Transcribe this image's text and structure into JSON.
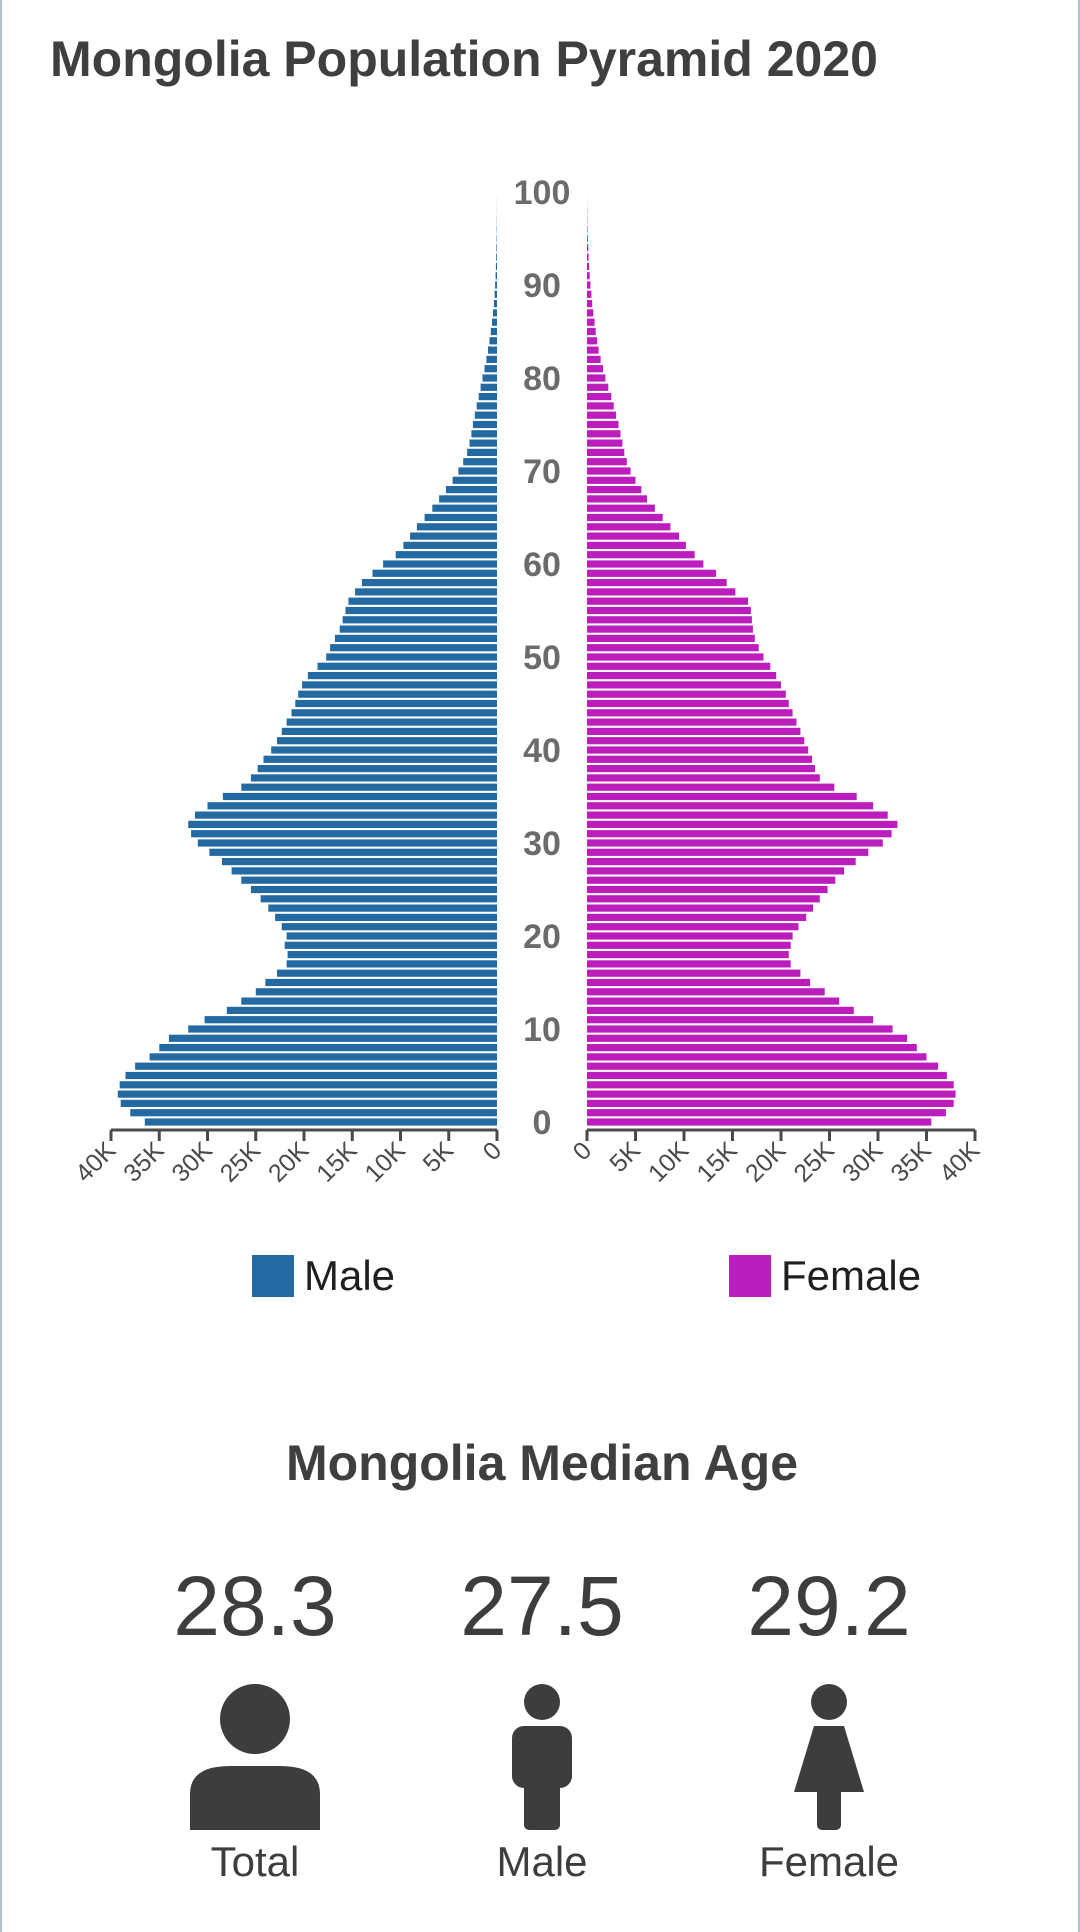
{
  "page_title": "Mongolia Population Pyramid 2020",
  "legend": {
    "male": "Male",
    "female": "Female"
  },
  "colors": {
    "male": "#246aa2",
    "female": "#bc1ebe",
    "axis": "#4a4a4a",
    "text": "#3d3d3d"
  },
  "median_age": {
    "title": "Mongolia Median Age",
    "total": {
      "value": "28.3",
      "label": "Total"
    },
    "male": {
      "value": "27.5",
      "label": "Male"
    },
    "female": {
      "value": "29.2",
      "label": "Female"
    }
  },
  "chart_data": {
    "type": "bar",
    "title": "Mongolia Population Pyramid 2020",
    "orientation": "horizontal",
    "y_ticks": [
      0,
      10,
      20,
      30,
      40,
      50,
      60,
      70,
      80,
      90,
      100
    ],
    "male_x_ticks": [
      "40K",
      "35K",
      "30K",
      "25K",
      "20K",
      "15K",
      "10K",
      "5K",
      "0"
    ],
    "female_x_ticks": [
      "0",
      "5K",
      "10K",
      "15K",
      "20K",
      "25K",
      "30K",
      "35K",
      "40K"
    ],
    "xlim": [
      0,
      40000
    ],
    "ages": [
      0,
      1,
      2,
      3,
      4,
      5,
      6,
      7,
      8,
      9,
      10,
      11,
      12,
      13,
      14,
      15,
      16,
      17,
      18,
      19,
      20,
      21,
      22,
      23,
      24,
      25,
      26,
      27,
      28,
      29,
      30,
      31,
      32,
      33,
      34,
      35,
      36,
      37,
      38,
      39,
      40,
      41,
      42,
      43,
      44,
      45,
      46,
      47,
      48,
      49,
      50,
      51,
      52,
      53,
      54,
      55,
      56,
      57,
      58,
      59,
      60,
      61,
      62,
      63,
      64,
      65,
      66,
      67,
      68,
      69,
      70,
      71,
      72,
      73,
      74,
      75,
      76,
      77,
      78,
      79,
      80,
      81,
      82,
      83,
      84,
      85,
      86,
      87,
      88,
      89,
      90,
      91,
      92,
      93,
      94,
      95,
      96,
      97,
      98,
      99,
      100
    ],
    "series": [
      {
        "name": "Male",
        "values": [
          36500,
          38000,
          39000,
          39300,
          39100,
          38500,
          37500,
          36000,
          35000,
          34000,
          32000,
          30300,
          28000,
          26500,
          25000,
          24000,
          22800,
          21800,
          21700,
          22000,
          21800,
          22300,
          23000,
          23700,
          24500,
          25500,
          26500,
          27500,
          28500,
          29800,
          31000,
          31700,
          32000,
          31300,
          30000,
          28400,
          26500,
          25500,
          24800,
          24200,
          23400,
          22800,
          22300,
          21800,
          21300,
          20900,
          20600,
          20200,
          19600,
          18600,
          17700,
          17300,
          16800,
          16300,
          16000,
          15700,
          15400,
          14700,
          14000,
          12900,
          11800,
          10500,
          9700,
          9000,
          8300,
          7500,
          6700,
          6000,
          5300,
          4600,
          4000,
          3500,
          3100,
          2850,
          2650,
          2500,
          2300,
          2100,
          1900,
          1700,
          1500,
          1300,
          1100,
          930,
          780,
          640,
          520,
          410,
          320,
          250,
          200,
          150,
          110,
          80,
          60,
          40,
          30,
          20,
          15,
          10,
          5
        ]
      },
      {
        "name": "Female",
        "values": [
          35500,
          37000,
          37800,
          38000,
          37800,
          37100,
          36200,
          35000,
          34000,
          33000,
          31500,
          29500,
          27500,
          26000,
          24500,
          23000,
          22000,
          21000,
          20800,
          21000,
          21200,
          21800,
          22600,
          23300,
          24000,
          24800,
          25600,
          26500,
          27700,
          29000,
          30500,
          31400,
          32000,
          31000,
          29500,
          27800,
          25500,
          24000,
          23500,
          23200,
          22800,
          22400,
          22000,
          21600,
          21200,
          20800,
          20500,
          20000,
          19500,
          18900,
          18200,
          17700,
          17300,
          17100,
          17000,
          16900,
          16600,
          15300,
          14400,
          13300,
          12000,
          11100,
          10200,
          9500,
          8600,
          7800,
          7000,
          6200,
          5600,
          5000,
          4500,
          4100,
          3850,
          3650,
          3450,
          3250,
          3000,
          2750,
          2500,
          2200,
          1900,
          1650,
          1400,
          1200,
          1050,
          900,
          780,
          650,
          540,
          450,
          360,
          280,
          220,
          170,
          120,
          80,
          50,
          30,
          20,
          10,
          5
        ]
      }
    ]
  }
}
